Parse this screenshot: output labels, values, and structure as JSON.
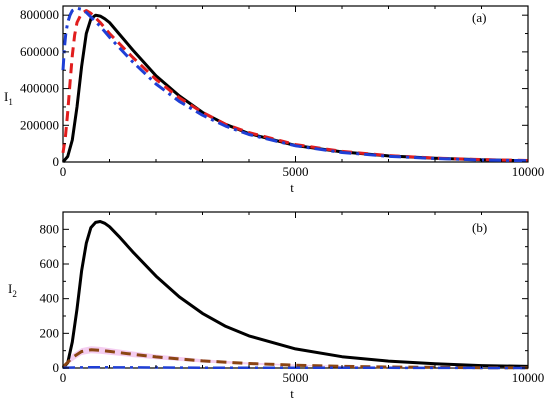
{
  "chart_data": [
    {
      "type": "line",
      "panel_label": "(a)",
      "ylabel": "I",
      "ylabel_sub": "1",
      "xlabel": "t",
      "xlim": [
        0,
        10000
      ],
      "ylim": [
        0,
        850000
      ],
      "xticks": [
        0,
        5000,
        10000
      ],
      "yticks": [
        0,
        200000,
        400000,
        600000,
        800000
      ],
      "series": [
        {
          "color": "#000000",
          "dash": "solid",
          "width": 3,
          "x": [
            0,
            100,
            200,
            300,
            400,
            500,
            600,
            700,
            800,
            900,
            1000,
            1200,
            1500,
            2000,
            2500,
            3000,
            3500,
            4000,
            5000,
            6000,
            7000,
            8000,
            9000,
            10000
          ],
          "y": [
            0,
            30000,
            120000,
            300000,
            520000,
            700000,
            780000,
            800000,
            795000,
            780000,
            760000,
            700000,
            610000,
            470000,
            360000,
            270000,
            205000,
            155000,
            90000,
            55000,
            33000,
            20000,
            12000,
            7000
          ]
        },
        {
          "color": "#e11d1d",
          "dash": "10,6",
          "width": 3,
          "x": [
            0,
            50,
            100,
            150,
            200,
            250,
            300,
            400,
            500,
            600,
            700,
            800,
            1000,
            1500,
            2000,
            2500,
            3000,
            3500,
            4000,
            5000,
            6000,
            7000,
            8000,
            9000,
            10000
          ],
          "y": [
            50000,
            130000,
            270000,
            430000,
            580000,
            690000,
            760000,
            810000,
            825000,
            810000,
            785000,
            760000,
            700000,
            570000,
            450000,
            350000,
            270000,
            205000,
            160000,
            95000,
            58000,
            35000,
            21000,
            13000,
            8000
          ]
        },
        {
          "color": "#1f3fd6",
          "dash": "12,5,3,5",
          "width": 3,
          "x": [
            0,
            30,
            60,
            100,
            150,
            200,
            300,
            400,
            500,
            600,
            800,
            1000,
            1500,
            2000,
            2500,
            3000,
            3500,
            4000,
            5000,
            6000,
            7000,
            8000,
            9000,
            10000
          ],
          "y": [
            500000,
            620000,
            700000,
            760000,
            800000,
            825000,
            838000,
            832000,
            815000,
            790000,
            740000,
            680000,
            545000,
            425000,
            330000,
            255000,
            195000,
            150000,
            88000,
            52000,
            31000,
            19000,
            11000,
            7000
          ]
        }
      ]
    },
    {
      "type": "line",
      "panel_label": "(b)",
      "ylabel": "I",
      "ylabel_sub": "2",
      "xlabel": "t",
      "xlim": [
        0,
        10000
      ],
      "ylim": [
        0,
        900
      ],
      "xticks": [
        0,
        5000,
        10000
      ],
      "yticks": [
        0,
        200,
        400,
        600,
        800
      ],
      "band": {
        "color": "#f3c8ee",
        "x": [
          0,
          200,
          400,
          600,
          800,
          1000,
          1500,
          2000,
          3000,
          4000,
          5000,
          6000,
          7000,
          8000,
          9000,
          10000
        ],
        "upper": [
          10,
          80,
          115,
          125,
          122,
          115,
          95,
          78,
          50,
          32,
          20,
          12,
          8,
          5,
          3,
          2
        ],
        "lower": [
          0,
          40,
          75,
          85,
          82,
          77,
          63,
          50,
          32,
          20,
          12,
          7,
          4,
          3,
          2,
          1
        ]
      },
      "series": [
        {
          "color": "#000000",
          "dash": "solid",
          "width": 3,
          "x": [
            0,
            100,
            200,
            300,
            400,
            500,
            600,
            700,
            800,
            900,
            1000,
            1200,
            1500,
            2000,
            2500,
            3000,
            3500,
            4000,
            5000,
            6000,
            7000,
            8000,
            9000,
            10000
          ],
          "y": [
            0,
            30,
            150,
            340,
            560,
            720,
            810,
            840,
            845,
            835,
            815,
            760,
            670,
            530,
            410,
            315,
            240,
            185,
            110,
            65,
            40,
            24,
            14,
            9
          ]
        },
        {
          "color": "#8b4513",
          "dash": "10,6",
          "width": 3,
          "x": [
            0,
            200,
            400,
            600,
            800,
            1000,
            1500,
            2000,
            3000,
            4000,
            5000,
            6000,
            7000,
            8000,
            9000,
            10000
          ],
          "y": [
            5,
            60,
            95,
            105,
            102,
            96,
            79,
            64,
            41,
            26,
            16,
            10,
            6,
            4,
            2,
            1
          ]
        },
        {
          "color": "#1f3fd6",
          "dash": "12,5,3,5",
          "width": 2.5,
          "x": [
            0,
            500,
            1000,
            2000,
            3000,
            5000,
            7000,
            10000
          ],
          "y": [
            2,
            4,
            4,
            3,
            2,
            1,
            1,
            0
          ]
        }
      ]
    }
  ]
}
